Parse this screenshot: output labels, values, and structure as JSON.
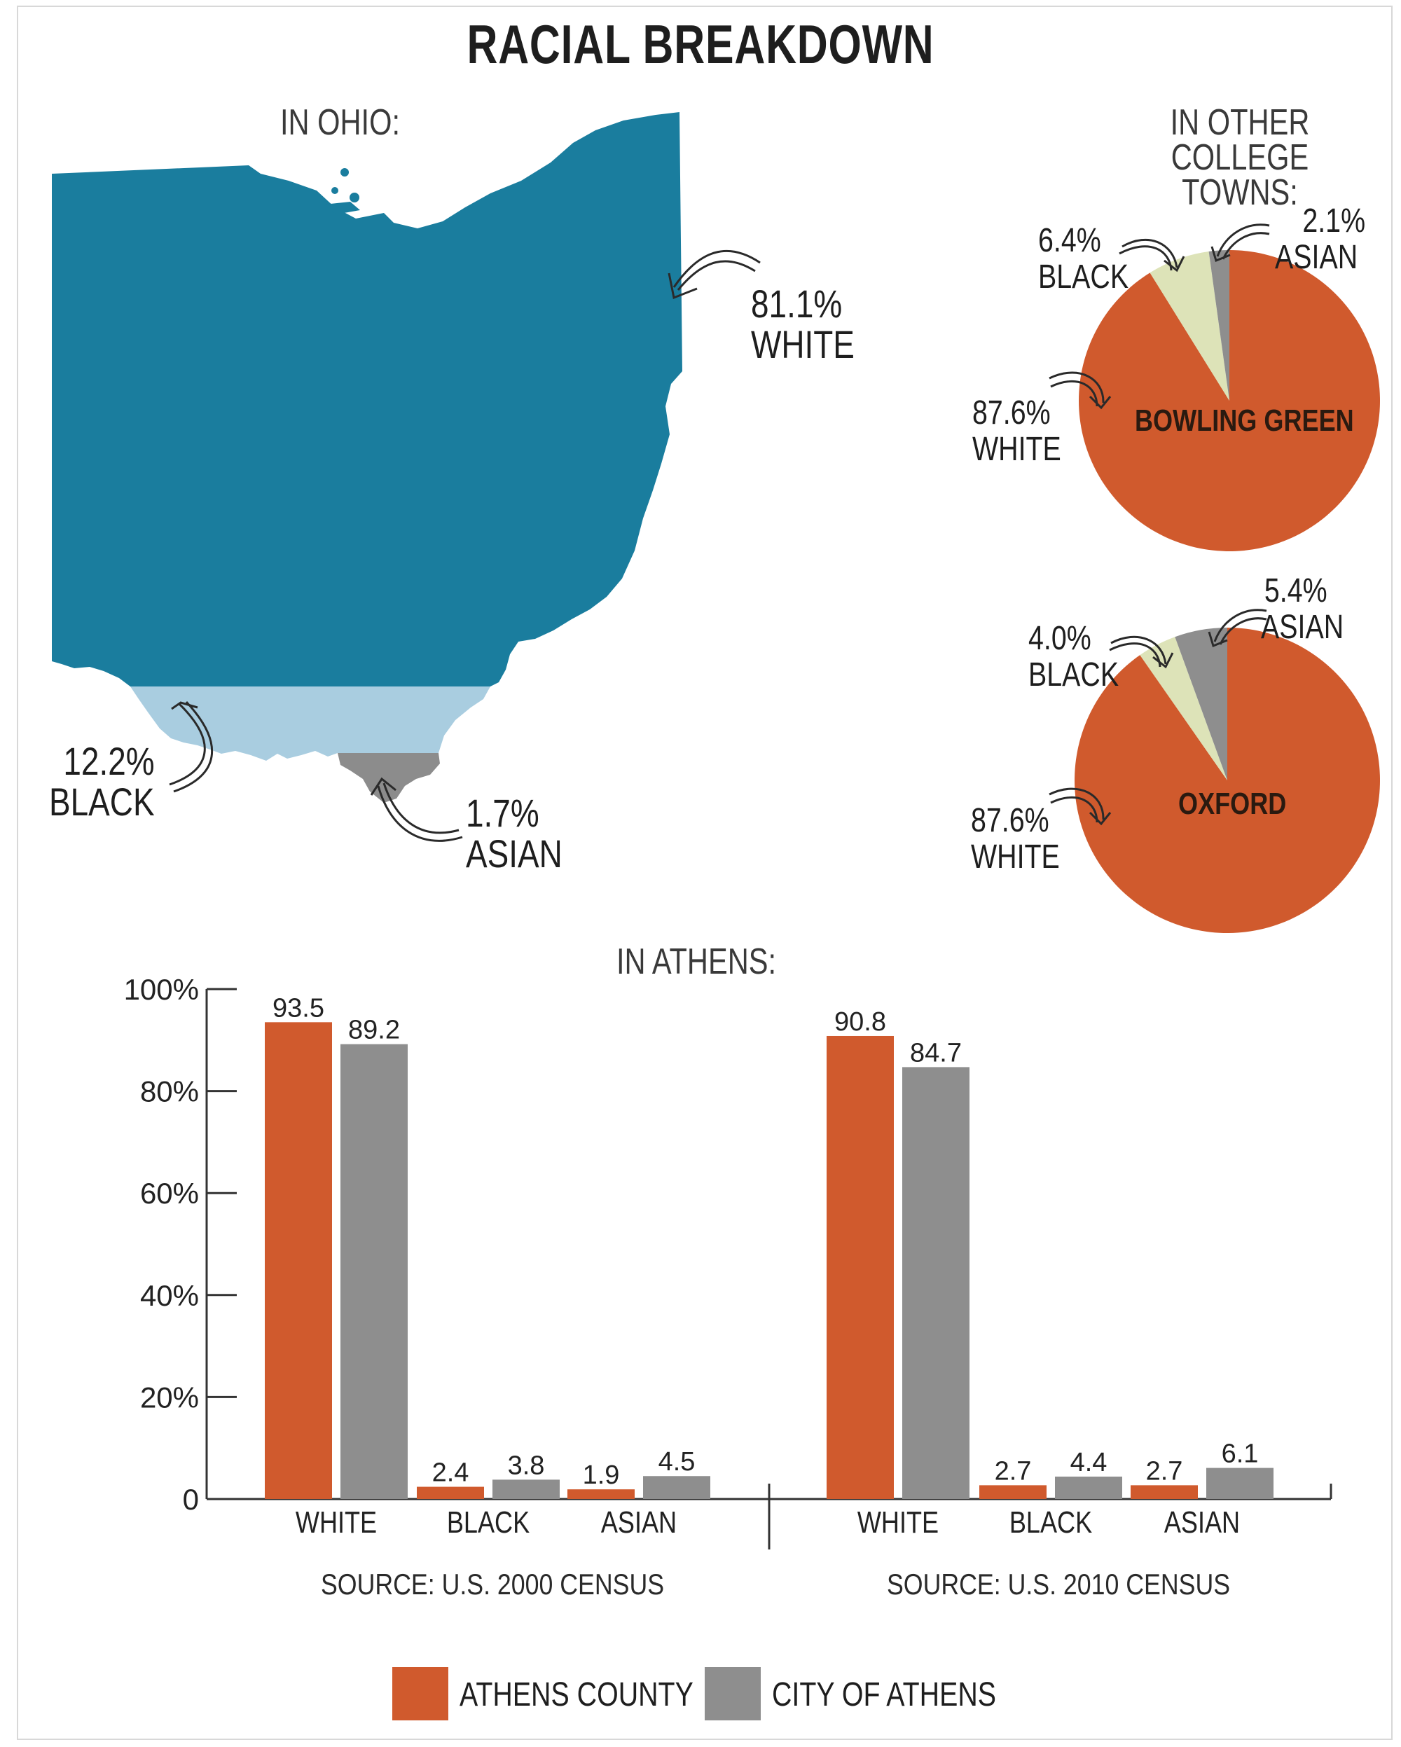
{
  "title": "RACIAL BREAKDOWN",
  "ohio": {
    "caption": "IN OHIO:",
    "white": {
      "value": "81.1%",
      "name": "WHITE"
    },
    "black": {
      "value": "12.2%",
      "name": "BLACK"
    },
    "asian": {
      "value": "1.7%",
      "name": "ASIAN"
    }
  },
  "colleges": {
    "caption": "IN OTHER\nCOLLEGE TOWNS:",
    "bowling_green": {
      "name": "BOWLING GREEN",
      "white": {
        "value": "87.6%",
        "name": "WHITE"
      },
      "black": {
        "value": "6.4%",
        "name": "BLACK"
      },
      "asian": {
        "value": "2.1%",
        "name": "ASIAN"
      }
    },
    "oxford": {
      "name": "OXFORD",
      "white": {
        "value": "87.6%",
        "name": "WHITE"
      },
      "black": {
        "value": "4.0%",
        "name": "BLACK"
      },
      "asian": {
        "value": "5.4%",
        "name": "ASIAN"
      }
    }
  },
  "athens": {
    "caption": "IN ATHENS:",
    "source_2000": "SOURCE: U.S. 2000 CENSUS",
    "source_2010": "SOURCE: U.S. 2010 CENSUS"
  },
  "legend": {
    "county": "ATHENS COUNTY",
    "city": "CITY OF ATHENS"
  },
  "colors": {
    "ohio_white": "#1a7d9e",
    "ohio_black": "#a9cde0",
    "ohio_asian": "#8c8c8c",
    "pie_white": "#d05a2d",
    "pie_black": "#dde3b8",
    "pie_asian": "#8e8e8e",
    "county": "#d05a2d",
    "city": "#8e8e8e"
  },
  "chart_data": [
    {
      "type": "pie",
      "title": "BOWLING GREEN",
      "categories": [
        "WHITE",
        "BLACK",
        "ASIAN"
      ],
      "values": [
        87.6,
        6.4,
        2.1
      ]
    },
    {
      "type": "pie",
      "title": "OXFORD",
      "categories": [
        "WHITE",
        "BLACK",
        "ASIAN"
      ],
      "values": [
        87.6,
        4.0,
        5.4
      ]
    },
    {
      "type": "bar",
      "title": "",
      "categories": [
        "WHITE",
        "BLACK",
        "ASIAN"
      ],
      "series": [
        {
          "name": "ATHENS COUNTY",
          "values": [
            93.5,
            2.4,
            1.9
          ],
          "labels": [
            "93.5",
            "2.4",
            "1.9"
          ]
        },
        {
          "name": "CITY OF ATHENS",
          "values": [
            89.2,
            3.8,
            4.5
          ],
          "labels": [
            "89.2",
            "3.8",
            "4.5"
          ]
        }
      ],
      "source": "SOURCE: U.S. 2000 CENSUS",
      "ylim": [
        0,
        100
      ],
      "yticks": [
        "0",
        "20%",
        "40%",
        "60%",
        "80%",
        "100%"
      ],
      "grid": false
    },
    {
      "type": "bar",
      "title": "",
      "categories": [
        "WHITE",
        "BLACK",
        "ASIAN"
      ],
      "series": [
        {
          "name": "ATHENS COUNTY",
          "values": [
            90.8,
            2.7,
            2.7
          ],
          "labels": [
            "90.8",
            "2.7",
            "2.7"
          ]
        },
        {
          "name": "CITY OF ATHENS",
          "values": [
            84.7,
            4.4,
            6.1
          ],
          "labels": [
            "84.7",
            "4.4",
            "6.1"
          ]
        }
      ],
      "source": "SOURCE: U.S. 2010 CENSUS",
      "ylim": [
        0,
        100
      ],
      "grid": false
    }
  ]
}
